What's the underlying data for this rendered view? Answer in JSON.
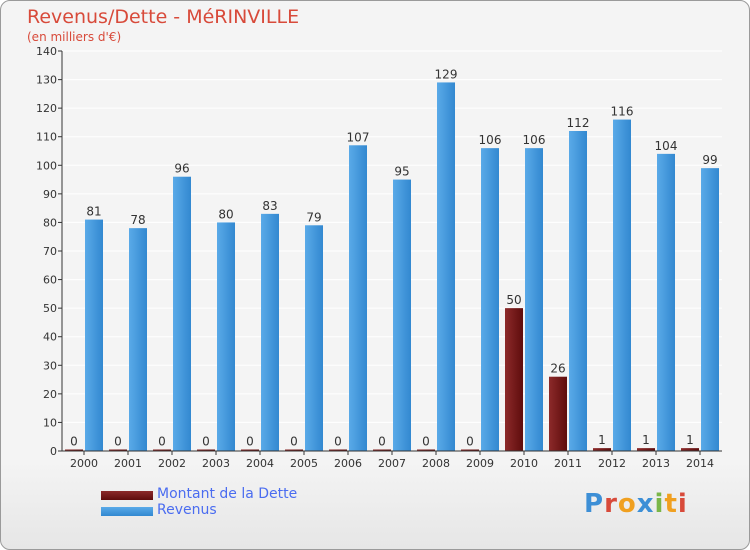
{
  "title": "Revenus/Dette - MéRINVILLE",
  "subtitle": "(en milliers d'€)",
  "logo_text": "Proxiti",
  "chart_data": {
    "type": "bar",
    "categories": [
      "2000",
      "2001",
      "2002",
      "2003",
      "2004",
      "2005",
      "2006",
      "2007",
      "2008",
      "2009",
      "2010",
      "2011",
      "2012",
      "2013",
      "2014"
    ],
    "series": [
      {
        "name": "Montant de la Dette",
        "color": "#6b0f0f",
        "values": [
          0,
          0,
          0,
          0,
          0,
          0,
          0,
          0,
          0,
          0,
          50,
          26,
          1,
          1,
          1
        ]
      },
      {
        "name": "Revenus",
        "color": "#3d8fd6",
        "values": [
          81,
          78,
          96,
          80,
          83,
          79,
          107,
          95,
          129,
          106,
          106,
          112,
          116,
          104,
          99
        ]
      }
    ],
    "ylim": [
      0,
      140
    ],
    "yticks": [
      0,
      10,
      20,
      30,
      40,
      50,
      60,
      70,
      80,
      90,
      100,
      110,
      120,
      130,
      140
    ],
    "grid": true,
    "legend": "bottom-left"
  },
  "colors": {
    "title": "#d84a3a",
    "legend_text": "#4a6cf0",
    "axis": "#333333",
    "grid": "#ffffff",
    "logo": [
      "#3d8fd6",
      "#d84a3a",
      "#f0a020",
      "#3d8fd6",
      "#7ab648",
      "#f0a020",
      "#d84a3a"
    ]
  }
}
